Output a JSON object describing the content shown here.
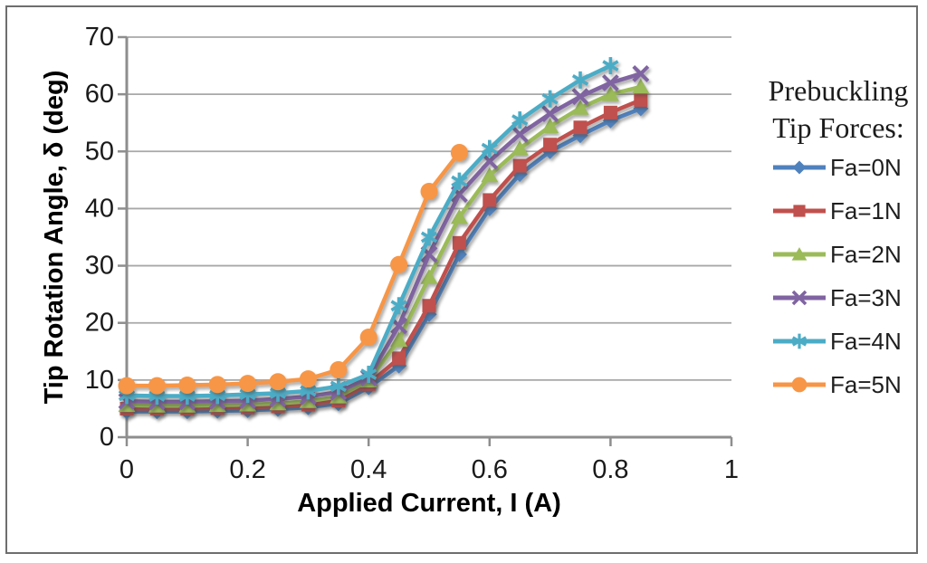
{
  "figure": {
    "background": "#ffffff",
    "border_color": "#6e6e6e",
    "gridline_color": "#a8a8a8",
    "axis_color": "#8e8e8e",
    "tick_label_color": "#1a1a1a"
  },
  "chart_data": {
    "type": "line",
    "title": "",
    "xlabel": "Applied Current, I (A)",
    "ylabel": "Tip Rotation Angle, δ (deg)",
    "xlim": [
      0,
      1
    ],
    "ylim": [
      0,
      70
    ],
    "x_ticks": [
      0,
      0.2,
      0.4,
      0.6,
      0.8,
      1
    ],
    "x_tick_labels": [
      "0",
      "0.2",
      "0.4",
      "0.6",
      "0.8",
      "1"
    ],
    "y_ticks": [
      0,
      10,
      20,
      30,
      40,
      50,
      60,
      70
    ],
    "y_tick_labels": [
      "0",
      "10",
      "20",
      "30",
      "40",
      "50",
      "60",
      "70"
    ],
    "grid": "horizontal",
    "legend_position": "right",
    "legend_title": "Prebuckling Tip Forces:",
    "series": [
      {
        "name": "Fa=0N",
        "color": "#4F81BD",
        "marker": "diamond",
        "x": [
          0,
          0.05,
          0.1,
          0.15,
          0.2,
          0.25,
          0.3,
          0.35,
          0.4,
          0.45,
          0.5,
          0.55,
          0.6,
          0.65,
          0.7,
          0.75,
          0.8,
          0.85
        ],
        "values": [
          4.5,
          4.5,
          4.5,
          4.6,
          4.7,
          4.9,
          5.2,
          5.9,
          8.7,
          12.5,
          21.5,
          32.0,
          40.0,
          46.0,
          50.0,
          52.8,
          55.4,
          57.5
        ]
      },
      {
        "name": "Fa=1N",
        "color": "#C0504D",
        "marker": "square",
        "x": [
          0,
          0.05,
          0.1,
          0.15,
          0.2,
          0.25,
          0.3,
          0.35,
          0.4,
          0.45,
          0.5,
          0.55,
          0.6,
          0.65,
          0.7,
          0.75,
          0.8,
          0.85
        ],
        "values": [
          5.0,
          5.0,
          5.0,
          5.1,
          5.2,
          5.4,
          5.7,
          6.4,
          9.3,
          13.8,
          23.0,
          34.0,
          41.5,
          47.5,
          51.2,
          54.2,
          56.8,
          59.0
        ]
      },
      {
        "name": "Fa=2N",
        "color": "#9BBB59",
        "marker": "triangle",
        "x": [
          0,
          0.05,
          0.1,
          0.15,
          0.2,
          0.25,
          0.3,
          0.35,
          0.4,
          0.45,
          0.5,
          0.55,
          0.6,
          0.65,
          0.7,
          0.75,
          0.8,
          0.85
        ],
        "values": [
          5.6,
          5.5,
          5.5,
          5.6,
          5.7,
          5.9,
          6.3,
          7.1,
          9.9,
          17.0,
          28.0,
          38.5,
          45.8,
          50.5,
          54.4,
          57.6,
          60.0,
          61.3
        ]
      },
      {
        "name": "Fa=3N",
        "color": "#8064A2",
        "marker": "x",
        "x": [
          0,
          0.05,
          0.1,
          0.15,
          0.2,
          0.25,
          0.3,
          0.35,
          0.4,
          0.45,
          0.5,
          0.55,
          0.6,
          0.65,
          0.7,
          0.75,
          0.8,
          0.85
        ],
        "values": [
          6.3,
          6.2,
          6.2,
          6.3,
          6.4,
          6.7,
          7.1,
          7.9,
          10.4,
          19.5,
          32.0,
          42.5,
          48.3,
          53.0,
          56.6,
          59.6,
          62.0,
          63.6
        ]
      },
      {
        "name": "Fa=4N",
        "color": "#4BACC6",
        "marker": "asterisk",
        "x": [
          0,
          0.05,
          0.1,
          0.15,
          0.2,
          0.25,
          0.3,
          0.35,
          0.4,
          0.45,
          0.5,
          0.55,
          0.6,
          0.65,
          0.7,
          0.75,
          0.8
        ],
        "values": [
          7.3,
          7.2,
          7.2,
          7.3,
          7.5,
          7.7,
          8.1,
          8.9,
          11.0,
          23.0,
          35.0,
          44.8,
          50.5,
          55.5,
          59.2,
          62.5,
          65.0
        ]
      },
      {
        "name": "Fa=5N",
        "color": "#F79646",
        "marker": "circle",
        "x": [
          0,
          0.05,
          0.1,
          0.15,
          0.2,
          0.25,
          0.3,
          0.35,
          0.4,
          0.45,
          0.5,
          0.55
        ],
        "values": [
          9.0,
          9.0,
          9.1,
          9.2,
          9.4,
          9.7,
          10.2,
          11.8,
          17.5,
          30.2,
          43.0,
          49.8
        ]
      }
    ]
  }
}
